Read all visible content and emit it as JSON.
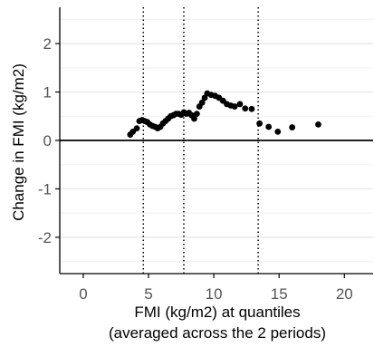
{
  "chart_data": {
    "type": "scatter",
    "xlabel": "FMI (kg/m2) at quantiles",
    "xlabel_line2": "(averaged across the 2 periods)",
    "ylabel": "Change in FMI (kg/m2)",
    "xlim": [
      -1.8,
      22.2
    ],
    "ylim": [
      -2.75,
      2.75
    ],
    "xticks": [
      0,
      5,
      10,
      15,
      20
    ],
    "xtick_labels": [
      "0",
      "5",
      "10",
      "15",
      "20"
    ],
    "yticks": [
      -2,
      -1,
      0,
      1,
      2
    ],
    "ytick_labels": [
      "-2",
      "-1",
      "0",
      "1",
      "2"
    ],
    "grid": "horizontal",
    "reference_line_y": 0,
    "vertical_dotted_lines_x": [
      4.6,
      7.7,
      13.4
    ],
    "series": [
      {
        "x": [
          3.6,
          3.8,
          4.1,
          4.3,
          4.5,
          4.7,
          4.9,
          5.1,
          5.3,
          5.5,
          5.7,
          5.9,
          6.1,
          6.3,
          6.5,
          6.7,
          6.9,
          7.1,
          7.3,
          7.5,
          7.7,
          7.9,
          8.1,
          8.3,
          8.5,
          8.7,
          8.9,
          9.1,
          9.3,
          9.5,
          9.8,
          10.1,
          10.4,
          10.7,
          11.0,
          11.3,
          11.6,
          12.0,
          12.4,
          12.9,
          13.5,
          14.2,
          14.9,
          16.0,
          18.0
        ],
        "y": [
          0.12,
          0.18,
          0.25,
          0.4,
          0.42,
          0.4,
          0.38,
          0.33,
          0.3,
          0.28,
          0.25,
          0.28,
          0.35,
          0.4,
          0.45,
          0.5,
          0.52,
          0.55,
          0.55,
          0.53,
          0.58,
          0.55,
          0.57,
          0.52,
          0.45,
          0.55,
          0.7,
          0.78,
          0.88,
          0.97,
          0.94,
          0.92,
          0.88,
          0.82,
          0.75,
          0.72,
          0.7,
          0.75,
          0.66,
          0.65,
          0.35,
          0.28,
          0.18,
          0.27,
          0.33
        ]
      }
    ]
  }
}
